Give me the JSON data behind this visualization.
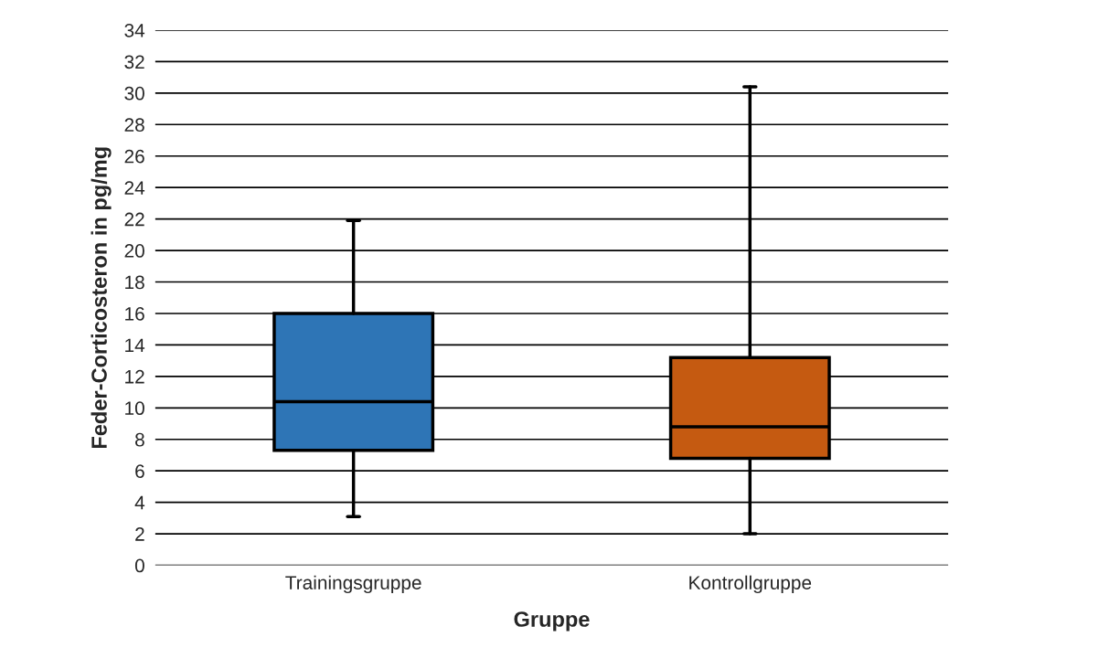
{
  "chart_data": {
    "type": "box",
    "xlabel": "Gruppe",
    "ylabel": "Feder-Corticosteron in pg/mg",
    "categories": [
      "Trainingsgruppe",
      "Kontrollgruppe"
    ],
    "colors": [
      "#2e75b6",
      "#c55a11"
    ],
    "boxes": [
      {
        "low": 3.1,
        "q1": 7.3,
        "median": 10.4,
        "q3": 16.0,
        "high": 21.9
      },
      {
        "low": 2.0,
        "q1": 6.8,
        "median": 8.8,
        "q3": 13.2,
        "high": 30.4
      }
    ],
    "ylim": [
      0,
      34
    ],
    "yticks": [
      0,
      2,
      4,
      6,
      8,
      10,
      12,
      14,
      16,
      18,
      20,
      22,
      24,
      26,
      28,
      30,
      32,
      34
    ],
    "grid": "y"
  }
}
